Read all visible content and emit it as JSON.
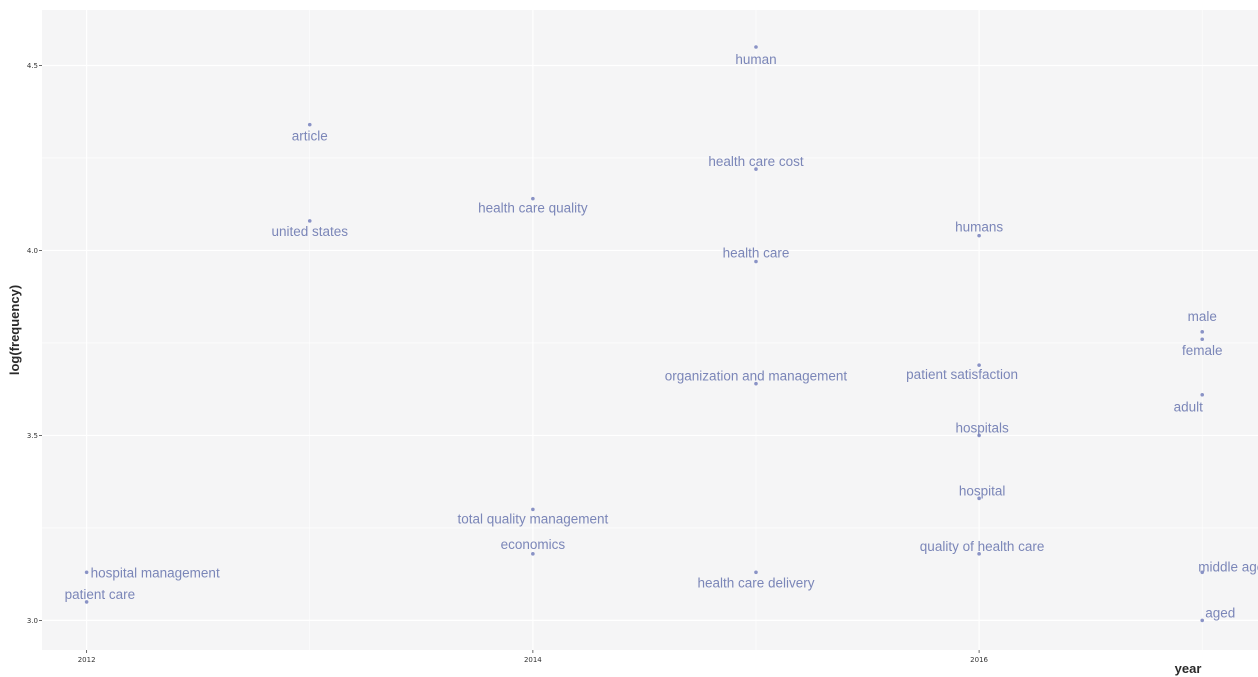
{
  "chart_data": {
    "type": "scatter",
    "title": "",
    "xlabel": "year",
    "ylabel": "log(frequency)",
    "xlim": [
      2011.8,
      2017.25
    ],
    "ylim": [
      2.92,
      4.65
    ],
    "x_ticks": [
      2012,
      2014,
      2016
    ],
    "y_ticks": [
      3.0,
      3.5,
      4.0,
      4.5
    ],
    "x_tick_labels": [
      "2012",
      "2014",
      "2016"
    ],
    "y_tick_labels": [
      "3.0",
      "3.5",
      "4.0",
      "4.5"
    ],
    "grid": true,
    "point_color": "#8a93c6",
    "label_color": "#7b86b8",
    "panel_color": "#f5f5f6",
    "points": [
      {
        "label": "hospital management",
        "x": 2012,
        "y": 3.13
      },
      {
        "label": "patient care",
        "x": 2012,
        "y": 3.05
      },
      {
        "label": "article",
        "x": 2013,
        "y": 4.34
      },
      {
        "label": "united states",
        "x": 2013,
        "y": 4.08
      },
      {
        "label": "health care quality",
        "x": 2014,
        "y": 4.14
      },
      {
        "label": "total quality management",
        "x": 2014,
        "y": 3.3
      },
      {
        "label": "economics",
        "x": 2014,
        "y": 3.18
      },
      {
        "label": "human",
        "x": 2015,
        "y": 4.55
      },
      {
        "label": "health care cost",
        "x": 2015,
        "y": 4.22
      },
      {
        "label": "health care",
        "x": 2015,
        "y": 3.97
      },
      {
        "label": "organization and management",
        "x": 2015,
        "y": 3.64
      },
      {
        "label": "health care delivery",
        "x": 2015,
        "y": 3.13
      },
      {
        "label": "humans",
        "x": 2016,
        "y": 4.04
      },
      {
        "label": "patient satisfaction",
        "x": 2016,
        "y": 3.69
      },
      {
        "label": "hospitals",
        "x": 2016,
        "y": 3.5
      },
      {
        "label": "hospital",
        "x": 2016,
        "y": 3.33
      },
      {
        "label": "quality of health care",
        "x": 2016,
        "y": 3.18
      },
      {
        "label": "male",
        "x": 2017,
        "y": 3.78
      },
      {
        "label": "female",
        "x": 2017,
        "y": 3.76
      },
      {
        "label": "adult",
        "x": 2017,
        "y": 3.61
      },
      {
        "label": "middle aged",
        "x": 2017,
        "y": 3.13
      },
      {
        "label": "aged",
        "x": 2017,
        "y": 3.0
      }
    ]
  }
}
